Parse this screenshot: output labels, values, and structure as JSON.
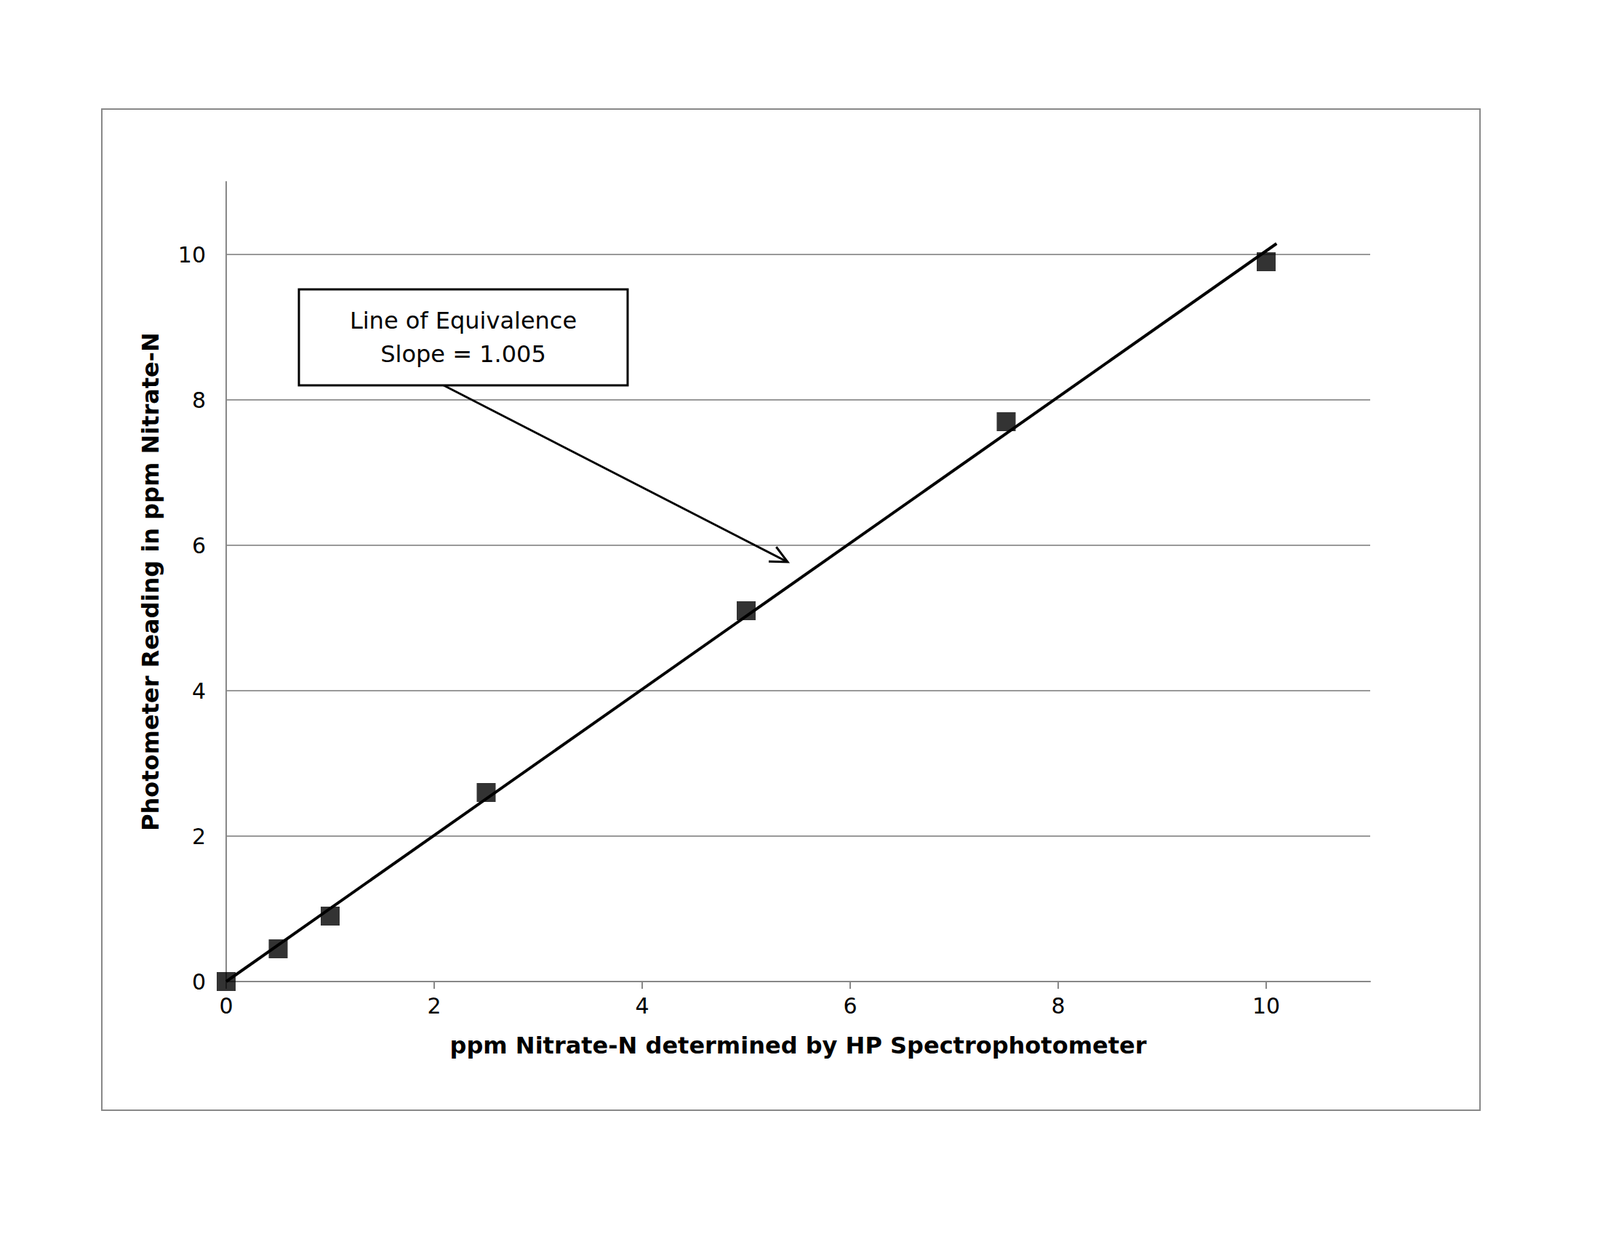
{
  "chart_data": {
    "type": "scatter",
    "x_label": "ppm Nitrate-N determined by HP Spectrophotometer",
    "y_label": "Photometer Reading in ppm Nitrate-N",
    "annotation": [
      "Line of Equivalence",
      "Slope = 1.005"
    ],
    "series": [
      {
        "type": "scatter",
        "marker": "square",
        "color": "#000000",
        "x": [
          0,
          0.5,
          1,
          2.5,
          5,
          7.5,
          10
        ],
        "values": [
          0,
          0.45,
          0.9,
          2.6,
          5.1,
          7.7,
          9.9
        ]
      },
      {
        "type": "line",
        "line_style": "solid",
        "color": "#000000",
        "x": [
          0,
          10.1
        ],
        "values": [
          0,
          10.15
        ]
      }
    ],
    "xlim": [
      0,
      11
    ],
    "ylim": [
      0,
      11
    ],
    "xticks": [
      0,
      2,
      4,
      6,
      8,
      10
    ],
    "yticks": [
      0,
      2,
      4,
      6,
      8,
      10
    ],
    "grid": true
  }
}
